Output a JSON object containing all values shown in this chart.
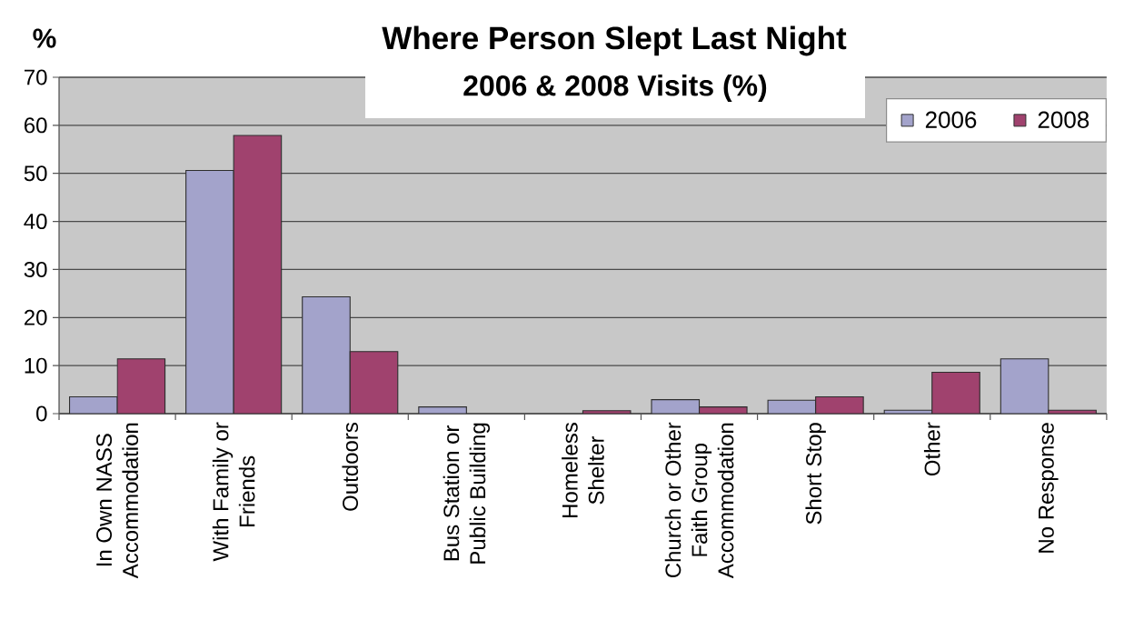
{
  "chart_data": {
    "type": "bar",
    "title": "Where Person Slept Last Night",
    "subtitle": "2006 & 2008 Visits (%)",
    "ylabel": "%",
    "categories": [
      "In Own NASS Accommodation",
      "With Family or Friends",
      "Outdoors",
      "Bus Station or Public Building",
      "Homeless Shelter",
      "Church or Other Faith Group Accommodation",
      "Short Stop",
      "Other",
      "No Response"
    ],
    "series": [
      {
        "name": "2006",
        "color": "#a3a3cb",
        "values": [
          3.5,
          50.6,
          24.3,
          1.4,
          null,
          2.9,
          2.8,
          0.7,
          11.4
        ]
      },
      {
        "name": "2008",
        "color": "#a0426e",
        "values": [
          11.4,
          57.9,
          12.9,
          null,
          0.6,
          1.4,
          3.5,
          8.6,
          0.7
        ]
      }
    ],
    "ylim": [
      0,
      70
    ],
    "yticks": [
      0,
      10,
      20,
      30,
      40,
      50,
      60,
      70
    ],
    "grid": "y",
    "legend": "top right"
  }
}
